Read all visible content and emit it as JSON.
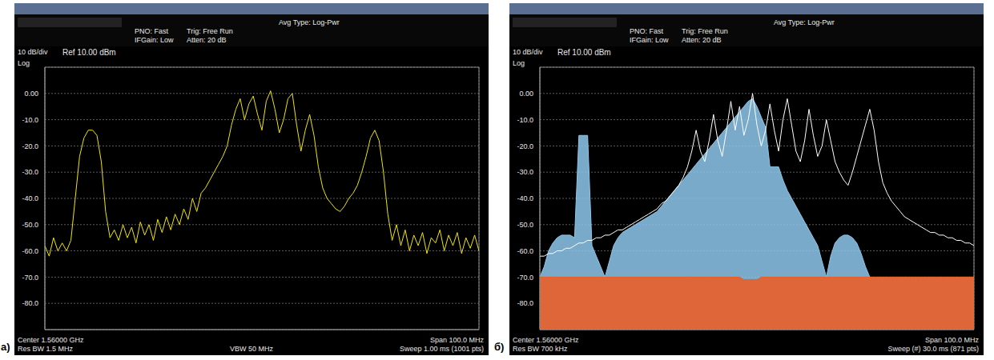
{
  "chart_data": [
    {
      "type": "line",
      "panel_label": "a)",
      "status": {
        "pno": "PNO: Fast",
        "ifgain": "IFGain: Low",
        "trigger": "Trig: Free Run",
        "atten": "Atten: 20 dB",
        "avg_type": "Avg Type: Log-Pwr"
      },
      "scale": {
        "per_div": "10 dB/div",
        "ref": "Ref 10.00 dBm",
        "log": "Log"
      },
      "footer": {
        "center": "Center 1.56000 GHz",
        "res_bw": "Res BW 1.5 MHz",
        "vbw": "VBW 50 MHz",
        "span": "Span 100.0 MHz",
        "sweep": "Sweep 1.00 ms (1001 pts)"
      },
      "x": [
        1510,
        1511,
        1512,
        1513,
        1514,
        1515,
        1516,
        1517,
        1518,
        1519,
        1520,
        1521,
        1522,
        1523,
        1524,
        1525,
        1526,
        1527,
        1528,
        1529,
        1530,
        1531,
        1532,
        1533,
        1534,
        1535,
        1536,
        1537,
        1538,
        1539,
        1540,
        1541,
        1542,
        1543,
        1544,
        1545,
        1546,
        1547,
        1548,
        1549,
        1550,
        1551,
        1552,
        1553,
        1554,
        1555,
        1556,
        1557,
        1558,
        1559,
        1560,
        1561,
        1562,
        1563,
        1564,
        1565,
        1566,
        1567,
        1568,
        1569,
        1570,
        1571,
        1572,
        1573,
        1574,
        1575,
        1576,
        1577,
        1578,
        1579,
        1580,
        1581,
        1582,
        1583,
        1584,
        1585,
        1586,
        1587,
        1588,
        1589,
        1590,
        1591,
        1592,
        1593,
        1594,
        1595,
        1596,
        1597,
        1598,
        1599,
        1600,
        1601,
        1602,
        1603,
        1604,
        1605,
        1606,
        1607,
        1608,
        1609,
        1610
      ],
      "xlim": [
        1510,
        1610
      ],
      "xticks": [
        1510,
        1520,
        1530,
        1540,
        1550,
        1560,
        1570,
        1580,
        1590,
        1600,
        1610
      ],
      "ylim": [
        -90,
        10
      ],
      "yticks": [
        {
          "value": 0,
          "label": "0.00"
        },
        {
          "value": -10,
          "label": "-10.0"
        },
        {
          "value": -20,
          "label": "-20.0"
        },
        {
          "value": -30,
          "label": "-30.0"
        },
        {
          "value": -40,
          "label": "-40.0"
        },
        {
          "value": -50,
          "label": "-50.0"
        },
        {
          "value": -60,
          "label": "-60.0"
        },
        {
          "value": -70,
          "label": "-70.0"
        },
        {
          "value": -80,
          "label": "-80.0"
        }
      ],
      "grid": true,
      "tick_labels": "y",
      "series": [
        {
          "type": "line",
          "color": "#f2e600",
          "values": [
            -58,
            -62,
            -55,
            -60,
            -57,
            -60,
            -56,
            -40,
            -24,
            -17,
            -14,
            -14,
            -16,
            -26,
            -45,
            -55,
            -52,
            -56,
            -50,
            -55,
            -51,
            -57,
            -49,
            -54,
            -50,
            -56,
            -48,
            -53,
            -47,
            -52,
            -46,
            -50,
            -44,
            -48,
            -40,
            -45,
            -38,
            -36,
            -33,
            -30,
            -27,
            -24,
            -20,
            -12,
            -6,
            -2,
            -10,
            -4,
            -1,
            -8,
            -14,
            -3,
            1,
            -6,
            -15,
            -10,
            -2,
            0,
            -12,
            -22,
            -14,
            -8,
            -16,
            -28,
            -36,
            -40,
            -42,
            -44,
            -45,
            -43,
            -40,
            -38,
            -35,
            -30,
            -24,
            -17,
            -14,
            -18,
            -30,
            -46,
            -56,
            -50,
            -58,
            -52,
            -60,
            -54,
            -58,
            -53,
            -61,
            -55,
            -57,
            -52,
            -60,
            -54,
            -58,
            -53,
            -61,
            -55,
            -59,
            -54,
            -60
          ]
        }
      ]
    },
    {
      "type": "line",
      "panel_label": "б)",
      "status": {
        "pno": "PNO: Fast",
        "ifgain": "IFGain: Low",
        "trigger": "Trig: Free Run",
        "atten": "Atten: 20 dB",
        "avg_type": "Avg Type: Log-Pwr"
      },
      "scale": {
        "per_div": "10 dB/div",
        "ref": "Ref 10.00 dBm",
        "log": "Log"
      },
      "footer": {
        "center": "Center 1.56000 GHz",
        "res_bw": "Res BW 700 kHz",
        "span": "Span 100.0 MHz",
        "sweep": "Sweep (#) 30.0 ms (871 pts)"
      },
      "x": [
        1510,
        1511,
        1512,
        1513,
        1514,
        1515,
        1516,
        1517,
        1518,
        1519,
        1520,
        1521,
        1522,
        1523,
        1524,
        1525,
        1526,
        1527,
        1528,
        1529,
        1530,
        1531,
        1532,
        1533,
        1534,
        1535,
        1536,
        1537,
        1538,
        1539,
        1540,
        1541,
        1542,
        1543,
        1544,
        1545,
        1546,
        1547,
        1548,
        1549,
        1550,
        1551,
        1552,
        1553,
        1554,
        1555,
        1556,
        1557,
        1558,
        1559,
        1560,
        1561,
        1562,
        1563,
        1564,
        1565,
        1566,
        1567,
        1568,
        1569,
        1570,
        1571,
        1572,
        1573,
        1574,
        1575,
        1576,
        1577,
        1578,
        1579,
        1580,
        1581,
        1582,
        1583,
        1584,
        1585,
        1586,
        1587,
        1588,
        1589,
        1590,
        1591,
        1592,
        1593,
        1594,
        1595,
        1596,
        1597,
        1598,
        1599,
        1600,
        1601,
        1602,
        1603,
        1604,
        1605,
        1606,
        1607,
        1608,
        1609,
        1610
      ],
      "xlim": [
        1510,
        1610
      ],
      "xticks": [
        1510,
        1520,
        1530,
        1540,
        1550,
        1560,
        1570,
        1580,
        1590,
        1600,
        1610
      ],
      "ylim": [
        -90,
        10
      ],
      "yticks": [
        {
          "value": 0,
          "label": "0.00"
        },
        {
          "value": -10,
          "label": "-10.0"
        },
        {
          "value": -20,
          "label": "-20.0"
        },
        {
          "value": -30,
          "label": "-30.0"
        },
        {
          "value": -40,
          "label": "-40.0"
        },
        {
          "value": -50,
          "label": "-50.0"
        },
        {
          "value": -60,
          "label": "-60.0"
        },
        {
          "value": -70,
          "label": "-70.0"
        },
        {
          "value": -80,
          "label": "-80.0"
        }
      ],
      "grid": true,
      "tick_labels": "y",
      "series": [
        {
          "type": "area",
          "color": "#8ec8ec",
          "values": [
            -70,
            -66,
            -60,
            -57,
            -55,
            -54,
            -54,
            -54,
            -55,
            -16,
            -16,
            -16,
            -58,
            -62,
            -66,
            -70,
            -64,
            -58,
            -55,
            -53,
            -52,
            -51,
            -50,
            -49,
            -48,
            -47,
            -46,
            -45,
            -43,
            -41,
            -39,
            -37,
            -35,
            -33,
            -31,
            -29,
            -27,
            -25,
            -23,
            -21,
            -19,
            -17,
            -15,
            -13,
            -11,
            -9,
            -7,
            -5,
            -3,
            -2,
            -5,
            -9,
            -13,
            -28,
            -28,
            -28,
            -33,
            -37,
            -40,
            -43,
            -46,
            -49,
            -52,
            -55,
            -58,
            -64,
            -70,
            -62,
            -57,
            -55,
            -54,
            -54,
            -55,
            -57,
            -61,
            -66,
            -70,
            -70,
            -70,
            -70,
            -70,
            -70,
            -70,
            -70,
            -70,
            -70,
            -70,
            -70,
            -70,
            -70,
            -70,
            -70,
            -70,
            -70,
            -70,
            -70,
            -70,
            -70,
            -70,
            -70,
            -70
          ]
        },
        {
          "type": "area",
          "color": "#f05a1e",
          "values": [
            -70,
            -70,
            -70,
            -70,
            -70,
            -70,
            -70,
            -70,
            -70,
            -70,
            -70,
            -70,
            -70,
            -70,
            -70,
            -70,
            -70,
            -70,
            -70,
            -70,
            -70,
            -70,
            -70,
            -70,
            -70,
            -70,
            -70,
            -70,
            -70,
            -70,
            -70,
            -70,
            -70,
            -70,
            -70,
            -70,
            -70,
            -70,
            -70,
            -70,
            -70,
            -70,
            -70,
            -70,
            -70,
            -70,
            -70,
            -71,
            -71,
            -71,
            -71,
            -70,
            -70,
            -70,
            -70,
            -70,
            -70,
            -70,
            -70,
            -70,
            -70,
            -70,
            -70,
            -70,
            -70,
            -70,
            -70,
            -70,
            -70,
            -70,
            -70,
            -70,
            -70,
            -70,
            -70,
            -70,
            -70,
            -70,
            -70,
            -70,
            -70,
            -70,
            -70,
            -70,
            -70,
            -70,
            -70,
            -70,
            -70,
            -70,
            -70,
            -70,
            -70,
            -70,
            -70,
            -70,
            -70,
            -70,
            -70,
            -70,
            -70
          ]
        },
        {
          "type": "line",
          "color": "#ffffff",
          "values": [
            -62,
            -62,
            -61,
            -61,
            -60,
            -60,
            -59,
            -59,
            -58,
            -57,
            -57,
            -56,
            -56,
            -55,
            -55,
            -54,
            -54,
            -53,
            -52,
            -52,
            -51,
            -50,
            -49,
            -48,
            -47,
            -46,
            -45,
            -44,
            -42,
            -41,
            -39,
            -37,
            -35,
            -32,
            -28,
            -22,
            -14,
            -22,
            -26,
            -18,
            -8,
            -18,
            -24,
            -14,
            -3,
            -14,
            -5,
            -16,
            -10,
            0,
            -12,
            -20,
            -14,
            -4,
            -14,
            -22,
            -10,
            -2,
            -12,
            -22,
            -26,
            -18,
            -6,
            -16,
            -24,
            -20,
            -10,
            -18,
            -26,
            -30,
            -33,
            -35,
            -30,
            -24,
            -18,
            -12,
            -6,
            -14,
            -26,
            -34,
            -38,
            -41,
            -43,
            -45,
            -47,
            -48,
            -49,
            -50,
            -51,
            -52,
            -53,
            -53,
            -54,
            -54,
            -55,
            -55,
            -56,
            -56,
            -57,
            -57,
            -58
          ]
        }
      ]
    }
  ]
}
